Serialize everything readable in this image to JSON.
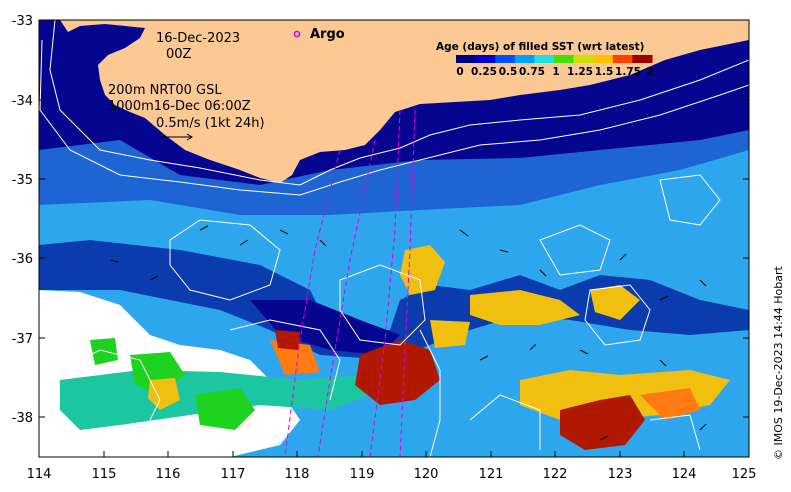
{
  "map": {
    "date_line1": "16-Dec-2023",
    "date_line2": "00Z",
    "legend_argo": "Argo",
    "depth_line1": "200m  NRT00 GSL",
    "depth_line2": "1000m16-Dec 06:00Z",
    "vector_scale": "0.5m/s (1kt 24h)",
    "colorbar_title": "Age (days) of filled SST (wrt latest)",
    "colorbar_ticks": [
      "0",
      "0.25",
      "0.5",
      "0.75",
      "1",
      "1.25",
      "1.5",
      "1.75",
      "2"
    ],
    "colorbar_colors": [
      "#000080",
      "#0000c8",
      "#0050ff",
      "#00a0ff",
      "#20e0e0",
      "#40e000",
      "#d0e000",
      "#ffc000",
      "#ff4000",
      "#a00000"
    ],
    "credit": "© IMOS 19-Dec-2023 14:44 Hobart",
    "x_ticks": [
      "114",
      "115",
      "116",
      "117",
      "118",
      "119",
      "120",
      "121",
      "122",
      "123",
      "124",
      "125"
    ],
    "y_ticks": [
      "-33",
      "-34",
      "-35",
      "-36",
      "-37",
      "-38"
    ],
    "colors": {
      "land": "#fcc995",
      "age_0": "#050590",
      "age_0_25": "#1e64d2",
      "age_0_5": "#2ea6ee",
      "age_1": "#1cc6a0",
      "age_1_25": "#1ed220",
      "age_1_5": "#f0bf10",
      "age_2": "#b01800",
      "no_data": "#ffffff",
      "argo_marker": "#e000e0"
    }
  }
}
